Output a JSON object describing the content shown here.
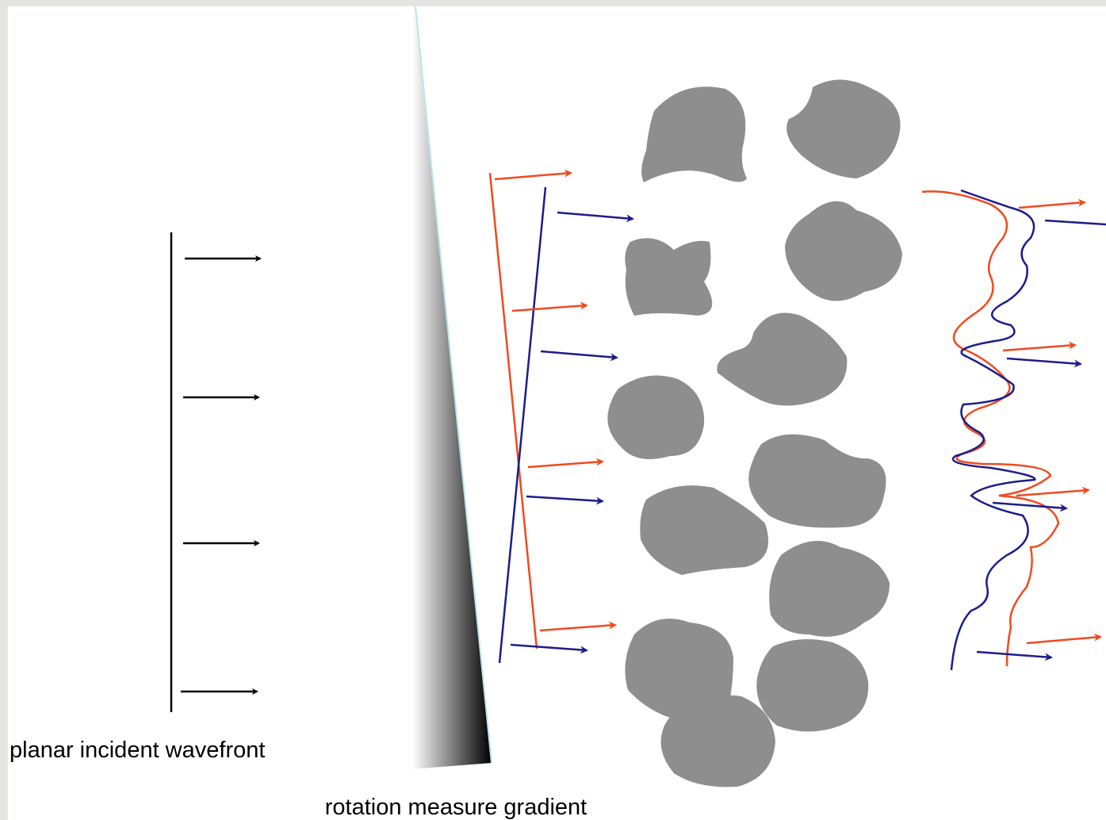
{
  "labels": {
    "wavefront": "planar incident wavefront",
    "gradient": "rotation measure gradient"
  }
}
